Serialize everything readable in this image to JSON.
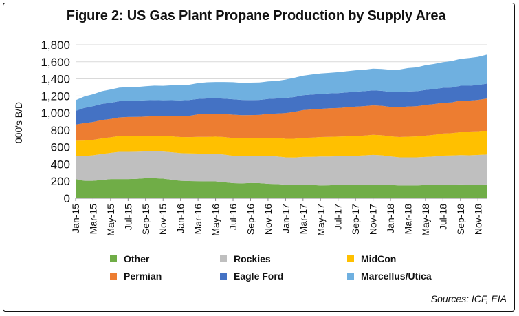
{
  "chart_data": {
    "type": "area",
    "stacked": true,
    "title": "Figure 2: US Gas Plant Propane Production by Supply Area",
    "ylabel": "000's B/D",
    "xlabel": "",
    "ylim": [
      0,
      1800
    ],
    "yticks": [
      0,
      200,
      400,
      600,
      800,
      "1,000",
      "1,200",
      "1,400",
      "1,600",
      "1,800"
    ],
    "x_tick_labels": [
      "Jan-15",
      "Mar-15",
      "May-15",
      "Jul-15",
      "Sep-15",
      "Nov-15",
      "Jan-16",
      "Mar-16",
      "May-16",
      "Jul-16",
      "Sep-16",
      "Nov-16",
      "Jan-17",
      "Mar-17",
      "May-17",
      "Jul-17",
      "Sep-17",
      "Nov-17",
      "Jan-18",
      "Mar-18",
      "May-18",
      "Jul-18",
      "Sep-18",
      "Nov-18"
    ],
    "x": [
      "Jan-15",
      "Feb-15",
      "Mar-15",
      "Apr-15",
      "May-15",
      "Jun-15",
      "Jul-15",
      "Aug-15",
      "Sep-15",
      "Oct-15",
      "Nov-15",
      "Dec-15",
      "Jan-16",
      "Feb-16",
      "Mar-16",
      "Apr-16",
      "May-16",
      "Jun-16",
      "Jul-16",
      "Aug-16",
      "Sep-16",
      "Oct-16",
      "Nov-16",
      "Dec-16",
      "Jan-17",
      "Feb-17",
      "Mar-17",
      "Apr-17",
      "May-17",
      "Jun-17",
      "Jul-17",
      "Aug-17",
      "Sep-17",
      "Oct-17",
      "Nov-17",
      "Dec-17",
      "Jan-18",
      "Feb-18",
      "Mar-18",
      "Apr-18",
      "May-18",
      "Jun-18",
      "Jul-18",
      "Aug-18",
      "Sep-18",
      "Oct-18",
      "Nov-18",
      "Dec-18"
    ],
    "series": [
      {
        "name": "Other",
        "color": "#70ad47",
        "values": [
          225,
          205,
          205,
          215,
          225,
          225,
          225,
          228,
          235,
          235,
          230,
          218,
          205,
          202,
          200,
          198,
          198,
          188,
          178,
          175,
          180,
          178,
          170,
          166,
          160,
          158,
          160,
          156,
          150,
          152,
          158,
          158,
          158,
          158,
          160,
          160,
          156,
          150,
          150,
          150,
          155,
          155,
          160,
          160,
          162,
          160,
          160,
          162
        ]
      },
      {
        "name": "Rockies",
        "color": "#bfbfbf",
        "values": [
          270,
          290,
          300,
          305,
          308,
          320,
          320,
          318,
          315,
          318,
          318,
          322,
          325,
          325,
          325,
          325,
          325,
          325,
          320,
          320,
          318,
          318,
          325,
          325,
          320,
          320,
          325,
          330,
          340,
          338,
          335,
          338,
          340,
          345,
          350,
          345,
          335,
          330,
          330,
          330,
          330,
          335,
          340,
          342,
          345,
          345,
          348,
          352
        ]
      },
      {
        "name": "MidCon",
        "color": "#ffc000",
        "values": [
          180,
          182,
          180,
          182,
          182,
          185,
          183,
          183,
          183,
          182,
          183,
          186,
          188,
          190,
          195,
          197,
          200,
          205,
          208,
          210,
          210,
          210,
          215,
          218,
          218,
          220,
          224,
          225,
          228,
          230,
          230,
          230,
          232,
          233,
          235,
          235,
          235,
          238,
          242,
          245,
          250,
          255,
          260,
          262,
          268,
          270,
          270,
          275
        ]
      },
      {
        "name": "Permian",
        "color": "#ed7d31",
        "values": [
          190,
          205,
          210,
          215,
          215,
          218,
          225,
          226,
          226,
          228,
          230,
          237,
          245,
          250,
          265,
          270,
          270,
          270,
          275,
          270,
          268,
          272,
          280,
          285,
          302,
          315,
          325,
          330,
          330,
          335,
          335,
          340,
          345,
          345,
          345,
          345,
          345,
          350,
          355,
          355,
          360,
          360,
          360,
          360,
          370,
          370,
          375,
          380
        ]
      },
      {
        "name": "Eagle Ford",
        "color": "#4472c4",
        "values": [
          160,
          178,
          185,
          190,
          190,
          190,
          190,
          190,
          190,
          188,
          188,
          187,
          185,
          185,
          180,
          180,
          180,
          180,
          180,
          178,
          175,
          175,
          175,
          176,
          176,
          175,
          175,
          175,
          175,
          175,
          175,
          175,
          175,
          175,
          175,
          175,
          175,
          175,
          175,
          175,
          175,
          175,
          175,
          175,
          175,
          175,
          175,
          175
        ]
      },
      {
        "name": "Marcellus/Utica",
        "color": "#6fb0e0",
        "values": [
          125,
          134,
          140,
          148,
          155,
          160,
          160,
          160,
          165,
          170,
          170,
          175,
          180,
          180,
          185,
          190,
          190,
          195,
          200,
          200,
          205,
          205,
          205,
          205,
          215,
          225,
          228,
          235,
          240,
          240,
          245,
          248,
          250,
          250,
          255,
          255,
          260,
          265,
          275,
          280,
          290,
          295,
          300,
          310,
          315,
          325,
          330,
          340
        ]
      }
    ]
  },
  "legend_items": [
    {
      "name": "Other",
      "color": "#70ad47"
    },
    {
      "name": "Rockies",
      "color": "#bfbfbf"
    },
    {
      "name": "MidCon",
      "color": "#ffc000"
    },
    {
      "name": "Permian",
      "color": "#ed7d31"
    },
    {
      "name": "Eagle Ford",
      "color": "#4472c4"
    },
    {
      "name": "Marcellus/Utica",
      "color": "#6fb0e0"
    }
  ],
  "source": "Sources: ICF, EIA"
}
